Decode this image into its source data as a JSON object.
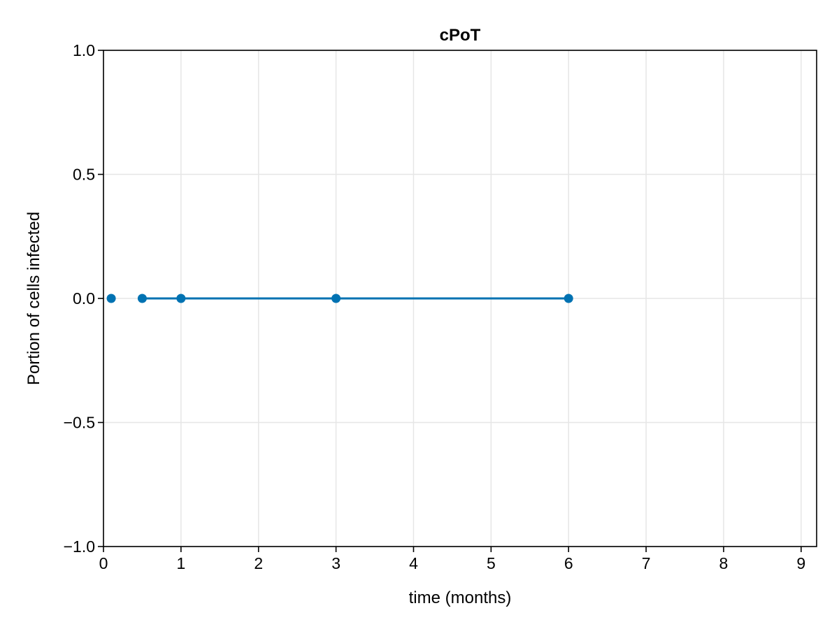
{
  "chart_data": {
    "type": "scatter",
    "title": "cPoT",
    "xlabel": "time (months)",
    "ylabel": "Portion of cells infected",
    "xlim": [
      0,
      9.2
    ],
    "ylim": [
      -1.0,
      1.0
    ],
    "xticks": [
      0,
      1,
      2,
      3,
      4,
      5,
      6,
      7,
      8,
      9
    ],
    "xtick_labels": [
      "0",
      "1",
      "2",
      "3",
      "4",
      "5",
      "6",
      "7",
      "8",
      "9"
    ],
    "yticks": [
      -1.0,
      -0.5,
      0.0,
      0.5,
      1.0
    ],
    "ytick_labels": [
      "−1.0",
      "−0.5",
      "0.0",
      "0.5",
      "1.0"
    ],
    "grid": true,
    "series": [
      {
        "color": "#0072b2",
        "points": [
          {
            "x": 0.1,
            "y": 0.0
          },
          {
            "x": 0.5,
            "y": 0.0
          },
          {
            "x": 1.0,
            "y": 0.0
          },
          {
            "x": 3.0,
            "y": 0.0
          },
          {
            "x": 6.0,
            "y": 0.0
          }
        ],
        "line_from": 0.5,
        "line_to": 6.0
      }
    ]
  }
}
